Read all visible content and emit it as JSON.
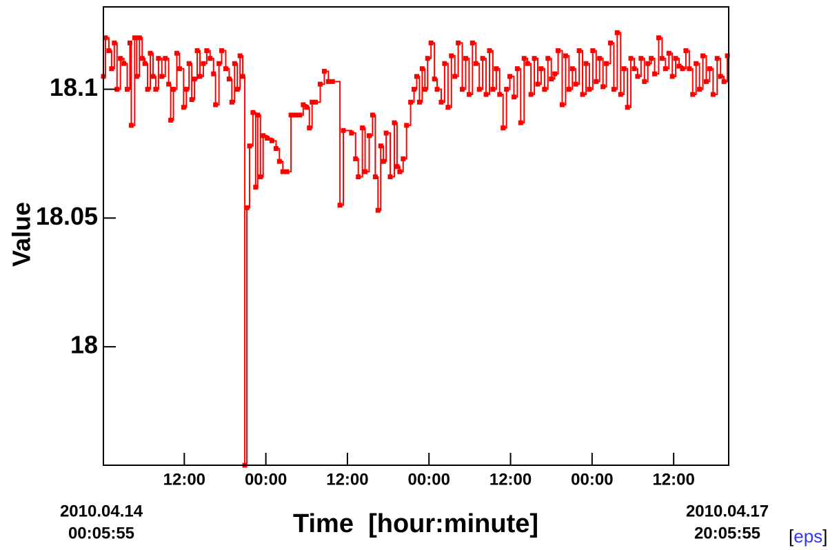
{
  "chart_data": {
    "type": "line",
    "x_label": "Time  [hour:minute]",
    "y_label": "Value",
    "x_start": {
      "date": "2010.04.14",
      "time": "00:05:55"
    },
    "x_end": {
      "date": "2010.04.17",
      "time": "20:05:55"
    },
    "export_link": {
      "open": "[",
      "label": "eps",
      "close": "]"
    },
    "color": "#ff0000",
    "xlim": [
      0.0986,
      92.0986
    ],
    "ylim": [
      17.954,
      18.132
    ],
    "xticks": [
      {
        "value": 12,
        "label": "12:00"
      },
      {
        "value": 24,
        "label": "00:00"
      },
      {
        "value": 36,
        "label": "12:00"
      },
      {
        "value": 48,
        "label": "00:00"
      },
      {
        "value": 60,
        "label": "12:00"
      },
      {
        "value": 72,
        "label": "00:00"
      },
      {
        "value": 84,
        "label": "12:00"
      }
    ],
    "yticks": [
      18,
      18.05,
      18.1
    ],
    "x": [
      0.1,
      0.4,
      0.9,
      1.3,
      1.7,
      2.1,
      2.6,
      3.1,
      3.6,
      4.0,
      4.2,
      4.7,
      5.0,
      5.4,
      5.8,
      6.2,
      6.6,
      7.0,
      7.4,
      7.8,
      8.2,
      8.7,
      9.2,
      9.7,
      10.0,
      10.4,
      10.9,
      11.3,
      11.9,
      12.3,
      12.7,
      13.1,
      13.5,
      13.9,
      14.3,
      14.8,
      15.3,
      15.8,
      16.3,
      16.6,
      17.1,
      17.5,
      18.1,
      18.6,
      19.0,
      19.4,
      19.8,
      20.2,
      20.6,
      20.9,
      21.2,
      21.6,
      22.1,
      22.5,
      22.8,
      23.2,
      23.6,
      24.2,
      24.9,
      25.5,
      26.0,
      26.5,
      27.1,
      27.7,
      28.3,
      29.0,
      29.5,
      30.0,
      30.4,
      30.8,
      31.3,
      32.0,
      32.6,
      33.2,
      33.8,
      34.9,
      35.4,
      36.6,
      37.2,
      37.6,
      38.2,
      38.6,
      39.2,
      39.7,
      40.1,
      40.5,
      40.9,
      41.3,
      41.7,
      42.3,
      42.9,
      43.3,
      43.7,
      44.2,
      44.7,
      45.3,
      45.8,
      46.2,
      46.6,
      47.0,
      47.4,
      47.8,
      48.3,
      48.8,
      49.2,
      49.8,
      50.3,
      50.8,
      51.3,
      51.8,
      52.3,
      52.9,
      53.4,
      53.9,
      54.4,
      54.9,
      55.4,
      55.9,
      56.4,
      56.9,
      57.4,
      57.9,
      58.4,
      58.9,
      59.4,
      59.9,
      60.5,
      61.0,
      61.5,
      62.0,
      62.5,
      63.0,
      63.5,
      64.0,
      64.5,
      65.0,
      65.5,
      66.0,
      66.5,
      67.0,
      67.6,
      68.1,
      68.6,
      69.1,
      69.6,
      70.1,
      70.6,
      71.1,
      71.6,
      72.1,
      72.6,
      73.1,
      73.6,
      74.1,
      74.7,
      75.2,
      75.7,
      76.2,
      76.7,
      77.2,
      77.7,
      78.2,
      78.7,
      79.2,
      79.7,
      80.2,
      80.7,
      81.2,
      81.8,
      82.3,
      82.8,
      83.3,
      83.8,
      84.3,
      84.8,
      85.3,
      85.8,
      86.3,
      86.8,
      87.3,
      87.8,
      88.3,
      88.8,
      89.3,
      89.8,
      90.4,
      90.9,
      91.4,
      91.9
    ],
    "values": [
      18.105,
      18.12,
      18.115,
      18.108,
      18.118,
      18.1,
      18.112,
      18.11,
      18.1,
      18.118,
      18.086,
      18.12,
      18.105,
      18.12,
      18.112,
      18.11,
      18.1,
      18.114,
      18.105,
      18.1,
      18.112,
      18.105,
      18.112,
      18.102,
      18.088,
      18.1,
      18.114,
      18.108,
      18.093,
      18.1,
      18.11,
      18.096,
      18.104,
      18.115,
      18.105,
      18.11,
      18.115,
      18.112,
      18.106,
      18.094,
      18.11,
      18.115,
      18.108,
      18.104,
      18.095,
      18.11,
      18.1,
      18.113,
      18.105,
      17.954,
      18.054,
      18.078,
      18.091,
      18.062,
      18.09,
      18.066,
      18.082,
      18.081,
      18.08,
      18.077,
      18.072,
      18.068,
      18.068,
      18.09,
      18.09,
      18.09,
      18.094,
      18.093,
      18.085,
      18.095,
      18.095,
      18.102,
      18.107,
      18.103,
      18.103,
      18.055,
      18.084,
      18.083,
      18.073,
      18.066,
      18.085,
      18.068,
      18.082,
      18.09,
      18.066,
      18.053,
      18.078,
      18.072,
      18.083,
      18.066,
      18.087,
      18.07,
      18.068,
      18.073,
      18.086,
      18.095,
      18.1,
      18.105,
      18.095,
      18.108,
      18.1,
      18.112,
      18.118,
      18.104,
      18.1,
      18.095,
      18.11,
      18.093,
      18.113,
      18.105,
      18.118,
      18.1,
      18.112,
      18.098,
      18.118,
      18.11,
      18.1,
      18.112,
      18.098,
      18.115,
      18.1,
      18.108,
      18.098,
      18.085,
      18.1,
      18.105,
      18.097,
      18.108,
      18.087,
      18.112,
      18.11,
      18.098,
      18.112,
      18.102,
      18.108,
      18.1,
      18.112,
      18.104,
      18.106,
      18.115,
      18.094,
      18.113,
      18.1,
      18.108,
      18.102,
      18.115,
      18.098,
      18.11,
      18.1,
      18.115,
      18.103,
      18.112,
      18.101,
      18.11,
      18.118,
      18.1,
      18.122,
      18.098,
      18.108,
      18.093,
      18.112,
      18.108,
      18.105,
      18.112,
      18.103,
      18.11,
      18.112,
      18.106,
      18.12,
      18.112,
      18.108,
      18.114,
      18.105,
      18.112,
      18.109,
      18.108,
      18.115,
      18.108,
      18.098,
      18.11,
      18.1,
      18.113,
      18.103,
      18.108,
      18.098,
      18.112,
      18.105,
      18.103,
      18.113
    ]
  }
}
